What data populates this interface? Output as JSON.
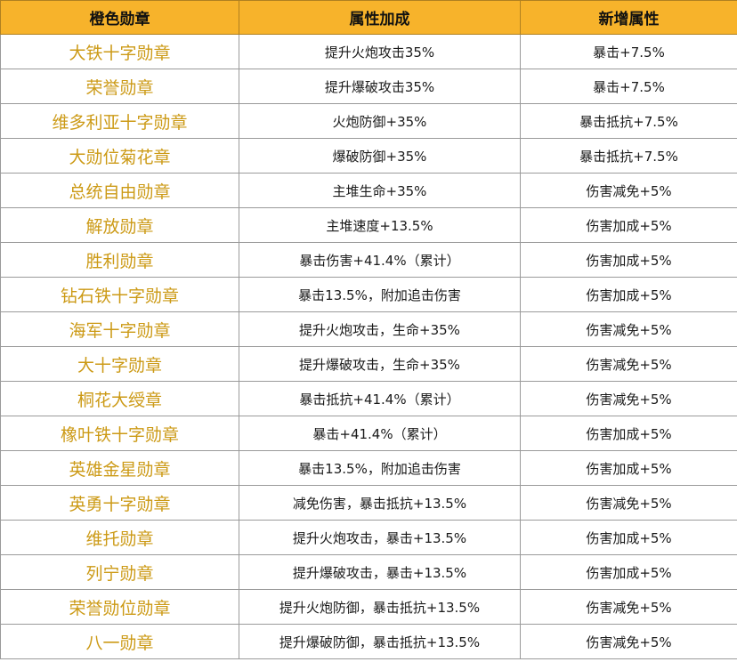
{
  "table": {
    "headers": [
      "橙色勋章",
      "属性加成",
      "新增属性"
    ],
    "rows": [
      [
        "大铁十字勋章",
        "提升火炮攻击35%",
        "暴击+7.5%"
      ],
      [
        "荣誉勋章",
        "提升爆破攻击35%",
        "暴击+7.5%"
      ],
      [
        "维多利亚十字勋章",
        "火炮防御+35%",
        "暴击抵抗+7.5%"
      ],
      [
        "大勋位菊花章",
        "爆破防御+35%",
        "暴击抵抗+7.5%"
      ],
      [
        "总统自由勋章",
        "主堆生命+35%",
        "伤害减免+5%"
      ],
      [
        "解放勋章",
        "主堆速度+13.5%",
        "伤害加成+5%"
      ],
      [
        "胜利勋章",
        "暴击伤害+41.4%（累计）",
        "伤害加成+5%"
      ],
      [
        "钻石铁十字勋章",
        "暴击13.5%，附加追击伤害",
        "伤害加成+5%"
      ],
      [
        "海军十字勋章",
        "提升火炮攻击，生命+35%",
        "伤害减免+5%"
      ],
      [
        "大十字勋章",
        "提升爆破攻击，生命+35%",
        "伤害减免+5%"
      ],
      [
        "桐花大绶章",
        "暴击抵抗+41.4%（累计）",
        "伤害减免+5%"
      ],
      [
        "橡叶铁十字勋章",
        "暴击+41.4%（累计）",
        "伤害加成+5%"
      ],
      [
        "英雄金星勋章",
        "暴击13.5%，附加追击伤害",
        "伤害加成+5%"
      ],
      [
        "英勇十字勋章",
        "减免伤害，暴击抵抗+13.5%",
        "伤害减免+5%"
      ],
      [
        "维托勋章",
        "提升火炮攻击，暴击+13.5%",
        "伤害加成+5%"
      ],
      [
        "列宁勋章",
        "提升爆破攻击，暴击+13.5%",
        "伤害加成+5%"
      ],
      [
        "荣誉勋位勋章",
        "提升火炮防御，暴击抵抗+13.5%",
        "伤害减免+5%"
      ],
      [
        "八一勋章",
        "提升爆破防御，暴击抵抗+13.5%",
        "伤害减免+5%"
      ]
    ]
  },
  "colors": {
    "header_bg": "#f7b32b",
    "medal_name": "#cc9a16",
    "border": "#9a9a9a"
  }
}
